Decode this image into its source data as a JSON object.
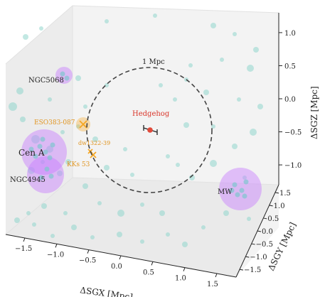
{
  "chart_data": {
    "type": "scatter",
    "projection": "3d",
    "title": "",
    "x_axis": {
      "label": "ΔSGX [Mpc]",
      "ticks": [
        "−1.5",
        "−1.0",
        "−0.5",
        "0.0",
        "0.5",
        "1.0",
        "1.5"
      ]
    },
    "y_axis": {
      "label": "ΔSGY [Mpc]",
      "ticks": [
        "−1.5",
        "−1.0",
        "−0.5",
        "0.0",
        "0.5",
        "1.0",
        "1.5"
      ]
    },
    "z_axis": {
      "label": "ΔSGZ [Mpc]",
      "ticks": [
        "−1.0",
        "−0.5",
        "0.0",
        "0.5",
        "1.0"
      ]
    },
    "reference_circle": {
      "label": "1 Mpc",
      "radius": 1.0
    },
    "target": {
      "label": "Hedgehog",
      "color": "#e04a3a"
    },
    "groups": [
      {
        "label": "NGC5068",
        "color": "#c77dff"
      },
      {
        "label": "Cen A",
        "color": "#c77dff"
      },
      {
        "label": "NGC4945",
        "color": "#c77dff"
      },
      {
        "label": "MW",
        "color": "#c77dff"
      },
      {
        "label": "ESO383-087",
        "color": "#f5a623"
      },
      {
        "label": "dw1322-39",
        "color": "#f5a623"
      },
      {
        "label": "KKs 53",
        "color": "#f5a623"
      }
    ],
    "field_galaxy_color": "#8fd6cc"
  }
}
